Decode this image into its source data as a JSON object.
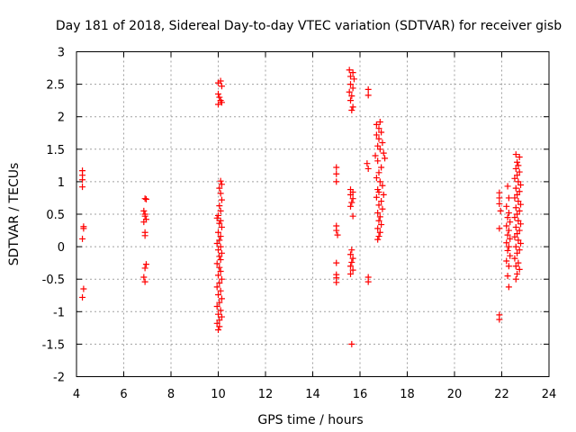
{
  "chart_data": {
    "type": "scatter",
    "title": "Day 181 of 2018, Sidereal Day-to-day VTEC variation (SDTVAR) for receiver gisb",
    "xlabel": "GPS time / hours",
    "ylabel": "SDTVAR / TECUs",
    "xlim": [
      4,
      24
    ],
    "ylim": [
      -2,
      3
    ],
    "xticks": [
      4,
      6,
      8,
      10,
      12,
      14,
      16,
      18,
      20,
      22,
      24
    ],
    "yticks": [
      -2,
      -1.5,
      -1,
      -0.5,
      0,
      0.5,
      1,
      1.5,
      2,
      2.5,
      3
    ],
    "xtick_labels": [
      "4",
      "6",
      "8",
      "10",
      "12",
      "14",
      "16",
      "18",
      "20",
      "22",
      "24"
    ],
    "ytick_labels": [
      "-2",
      "-1.5",
      "-1",
      "-0.5",
      "0",
      "0.5",
      "1",
      "1.5",
      "2",
      "2.5",
      "3"
    ],
    "grid": true,
    "marker": "+",
    "marker_color": "#ff0000",
    "series": [
      {
        "name": "SDTVAR",
        "points": [
          [
            4.25,
            1.17
          ],
          [
            4.25,
            1.1
          ],
          [
            4.25,
            1.03
          ],
          [
            4.25,
            0.92
          ],
          [
            4.3,
            0.31
          ],
          [
            4.3,
            0.28
          ],
          [
            4.25,
            0.12
          ],
          [
            4.3,
            -0.65
          ],
          [
            4.25,
            -0.78
          ],
          [
            6.9,
            0.74
          ],
          [
            6.95,
            0.73
          ],
          [
            6.85,
            0.55
          ],
          [
            6.9,
            0.5
          ],
          [
            6.9,
            0.47
          ],
          [
            6.95,
            0.42
          ],
          [
            6.85,
            0.38
          ],
          [
            6.9,
            0.22
          ],
          [
            6.9,
            0.17
          ],
          [
            6.95,
            -0.27
          ],
          [
            6.9,
            -0.33
          ],
          [
            6.85,
            -0.47
          ],
          [
            6.9,
            -0.54
          ],
          [
            10.0,
            2.52
          ],
          [
            10.1,
            2.55
          ],
          [
            10.15,
            2.47
          ],
          [
            10.0,
            2.35
          ],
          [
            10.05,
            2.3
          ],
          [
            10.1,
            2.25
          ],
          [
            10.0,
            2.19
          ],
          [
            10.15,
            2.22
          ],
          [
            10.1,
            1.01
          ],
          [
            10.15,
            0.96
          ],
          [
            10.05,
            0.9
          ],
          [
            10.1,
            0.82
          ],
          [
            10.15,
            0.72
          ],
          [
            10.05,
            0.63
          ],
          [
            10.1,
            0.55
          ],
          [
            10.0,
            0.48
          ],
          [
            9.95,
            0.44
          ],
          [
            10.1,
            0.4
          ],
          [
            10.05,
            0.36
          ],
          [
            10.15,
            0.3
          ],
          [
            10.0,
            0.22
          ],
          [
            10.1,
            0.16
          ],
          [
            10.05,
            0.1
          ],
          [
            9.95,
            0.05
          ],
          [
            10.1,
            0.0
          ],
          [
            10.0,
            -0.05
          ],
          [
            10.15,
            -0.1
          ],
          [
            10.05,
            -0.15
          ],
          [
            10.1,
            -0.2
          ],
          [
            9.95,
            -0.26
          ],
          [
            10.05,
            -0.32
          ],
          [
            10.1,
            -0.38
          ],
          [
            10.0,
            -0.44
          ],
          [
            10.15,
            -0.5
          ],
          [
            10.05,
            -0.56
          ],
          [
            9.95,
            -0.62
          ],
          [
            10.1,
            -0.68
          ],
          [
            10.0,
            -0.74
          ],
          [
            10.15,
            -0.8
          ],
          [
            10.05,
            -0.86
          ],
          [
            9.95,
            -0.92
          ],
          [
            10.1,
            -0.98
          ],
          [
            10.0,
            -1.04
          ],
          [
            10.15,
            -1.08
          ],
          [
            10.05,
            -1.13
          ],
          [
            9.95,
            -1.18
          ],
          [
            10.05,
            -1.23
          ],
          [
            10.0,
            -1.28
          ],
          [
            15.0,
            1.22
          ],
          [
            15.0,
            1.12
          ],
          [
            15.0,
            1.0
          ],
          [
            15.0,
            0.32
          ],
          [
            15.0,
            0.25
          ],
          [
            15.05,
            0.18
          ],
          [
            15.0,
            -0.25
          ],
          [
            15.0,
            -0.43
          ],
          [
            15.0,
            -0.48
          ],
          [
            15.0,
            -0.55
          ],
          [
            15.55,
            2.72
          ],
          [
            15.7,
            2.68
          ],
          [
            15.6,
            2.62
          ],
          [
            15.75,
            2.58
          ],
          [
            15.6,
            2.5
          ],
          [
            15.7,
            2.44
          ],
          [
            15.55,
            2.38
          ],
          [
            15.65,
            2.32
          ],
          [
            15.6,
            2.25
          ],
          [
            15.7,
            2.15
          ],
          [
            15.65,
            2.1
          ],
          [
            15.6,
            0.88
          ],
          [
            15.7,
            0.84
          ],
          [
            15.6,
            0.8
          ],
          [
            15.7,
            0.74
          ],
          [
            15.65,
            0.68
          ],
          [
            15.6,
            0.62
          ],
          [
            15.7,
            0.47
          ],
          [
            15.65,
            -0.05
          ],
          [
            15.6,
            -0.12
          ],
          [
            15.7,
            -0.18
          ],
          [
            15.65,
            -0.24
          ],
          [
            15.6,
            -0.3
          ],
          [
            15.7,
            -0.36
          ],
          [
            15.6,
            -0.42
          ],
          [
            15.65,
            -1.5
          ],
          [
            16.35,
            2.42
          ],
          [
            16.35,
            2.33
          ],
          [
            16.3,
            1.28
          ],
          [
            16.35,
            1.2
          ],
          [
            16.35,
            -0.47
          ],
          [
            16.35,
            -0.54
          ],
          [
            16.7,
            1.88
          ],
          [
            16.85,
            1.92
          ],
          [
            16.8,
            1.82
          ],
          [
            16.9,
            1.76
          ],
          [
            16.7,
            1.72
          ],
          [
            16.8,
            1.66
          ],
          [
            16.95,
            1.6
          ],
          [
            16.75,
            1.55
          ],
          [
            16.85,
            1.5
          ],
          [
            17.0,
            1.44
          ],
          [
            16.65,
            1.4
          ],
          [
            17.05,
            1.36
          ],
          [
            16.75,
            1.32
          ],
          [
            16.9,
            1.22
          ],
          [
            16.8,
            1.14
          ],
          [
            16.7,
            1.06
          ],
          [
            16.85,
            1.0
          ],
          [
            16.95,
            0.94
          ],
          [
            16.75,
            0.88
          ],
          [
            16.8,
            0.84
          ],
          [
            17.0,
            0.8
          ],
          [
            16.7,
            0.76
          ],
          [
            16.9,
            0.7
          ],
          [
            16.8,
            0.64
          ],
          [
            16.95,
            0.58
          ],
          [
            16.75,
            0.52
          ],
          [
            16.85,
            0.46
          ],
          [
            16.8,
            0.4
          ],
          [
            16.9,
            0.34
          ],
          [
            16.75,
            0.28
          ],
          [
            16.85,
            0.22
          ],
          [
            16.8,
            0.16
          ],
          [
            16.75,
            0.11
          ],
          [
            21.9,
            0.83
          ],
          [
            21.9,
            0.75
          ],
          [
            21.9,
            0.66
          ],
          [
            21.95,
            0.55
          ],
          [
            21.9,
            0.28
          ],
          [
            21.9,
            -1.05
          ],
          [
            21.9,
            -1.12
          ],
          [
            22.25,
            0.93
          ],
          [
            22.3,
            0.75
          ],
          [
            22.2,
            0.62
          ],
          [
            22.3,
            0.52
          ],
          [
            22.25,
            0.45
          ],
          [
            22.35,
            0.38
          ],
          [
            22.2,
            0.32
          ],
          [
            22.3,
            0.25
          ],
          [
            22.25,
            0.18
          ],
          [
            22.35,
            0.12
          ],
          [
            22.2,
            0.06
          ],
          [
            22.3,
            0.0
          ],
          [
            22.25,
            -0.06
          ],
          [
            22.35,
            -0.14
          ],
          [
            22.2,
            -0.22
          ],
          [
            22.3,
            -0.3
          ],
          [
            22.25,
            -0.45
          ],
          [
            22.3,
            -0.62
          ],
          [
            22.6,
            1.42
          ],
          [
            22.75,
            1.38
          ],
          [
            22.65,
            1.3
          ],
          [
            22.7,
            1.25
          ],
          [
            22.6,
            1.2
          ],
          [
            22.75,
            1.15
          ],
          [
            22.65,
            1.1
          ],
          [
            22.55,
            1.05
          ],
          [
            22.7,
            1.0
          ],
          [
            22.8,
            0.95
          ],
          [
            22.6,
            0.9
          ],
          [
            22.75,
            0.85
          ],
          [
            22.65,
            0.8
          ],
          [
            22.55,
            0.75
          ],
          [
            22.7,
            0.7
          ],
          [
            22.8,
            0.65
          ],
          [
            22.6,
            0.6
          ],
          [
            22.75,
            0.55
          ],
          [
            22.65,
            0.5
          ],
          [
            22.55,
            0.45
          ],
          [
            22.7,
            0.4
          ],
          [
            22.8,
            0.35
          ],
          [
            22.6,
            0.3
          ],
          [
            22.75,
            0.25
          ],
          [
            22.65,
            0.2
          ],
          [
            22.55,
            0.15
          ],
          [
            22.7,
            0.1
          ],
          [
            22.8,
            0.05
          ],
          [
            22.6,
            0.0
          ],
          [
            22.75,
            -0.05
          ],
          [
            22.65,
            -0.1
          ],
          [
            22.55,
            -0.18
          ],
          [
            22.7,
            -0.25
          ],
          [
            22.6,
            -0.3
          ],
          [
            22.75,
            -0.35
          ],
          [
            22.65,
            -0.42
          ],
          [
            22.6,
            -0.5
          ]
        ]
      }
    ]
  }
}
